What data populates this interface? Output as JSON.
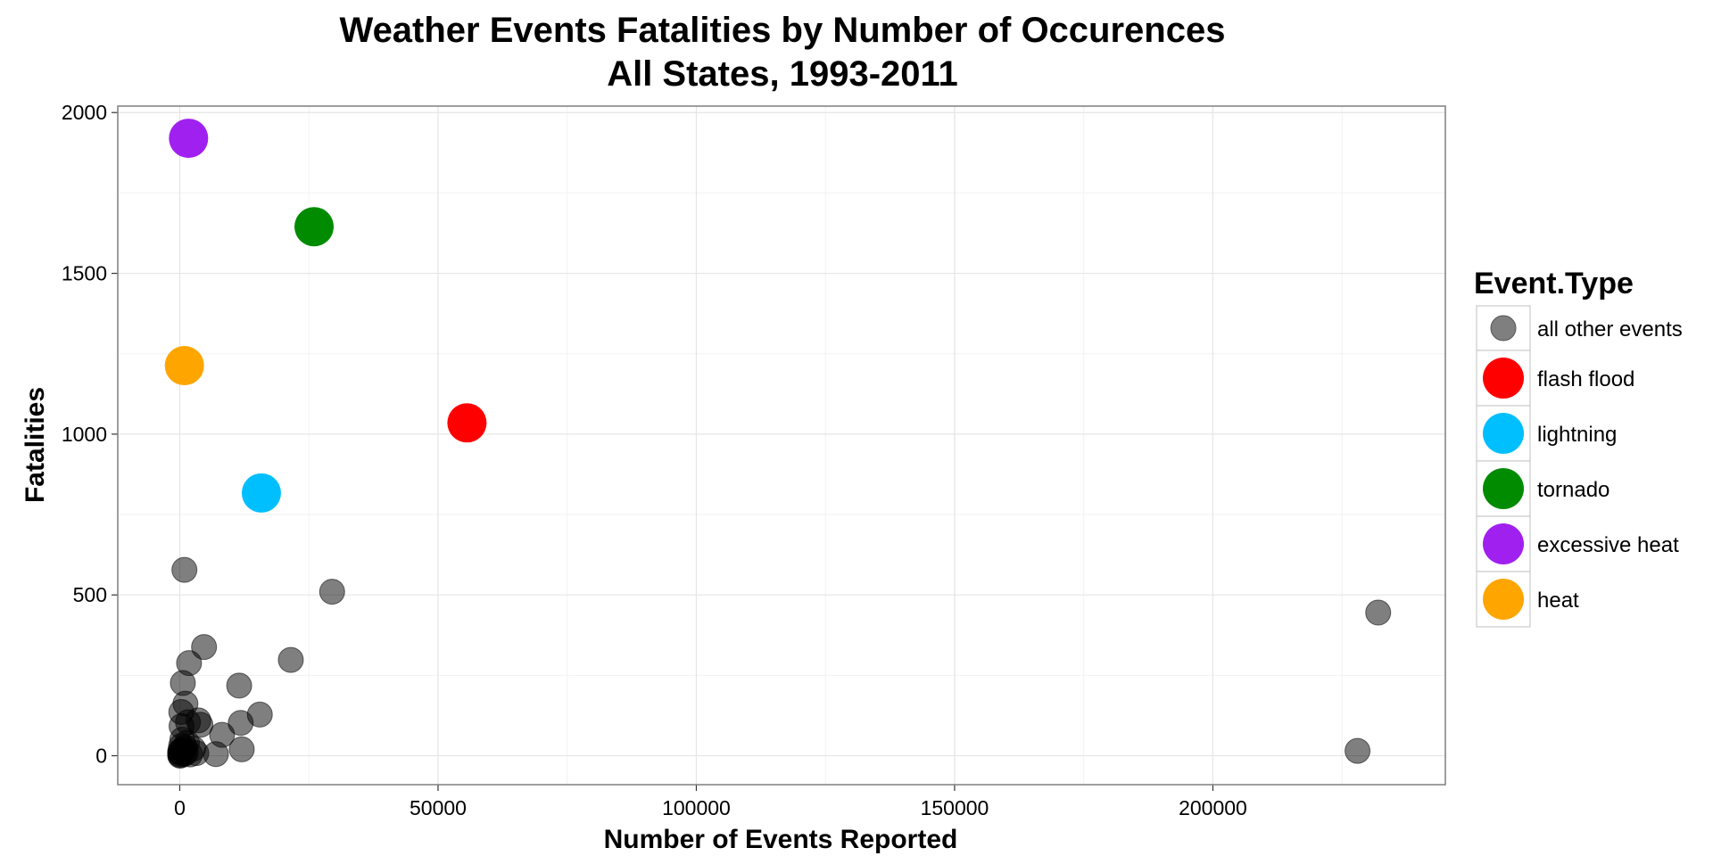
{
  "chart_data": {
    "type": "scatter",
    "title": "Weather Events Fatalities by Number of Occurences",
    "subtitle": "All States, 1993-2011",
    "xlabel": "Number of Events Reported",
    "ylabel": "Fatalities",
    "xlim": [
      -12000,
      245000
    ],
    "ylim": [
      -90,
      2020
    ],
    "x_ticks": [
      0,
      50000,
      100000,
      150000,
      200000
    ],
    "x_tick_labels": [
      "0",
      "50000",
      "100000",
      "150000",
      "200000"
    ],
    "y_ticks": [
      0,
      500,
      1000,
      1500,
      2000
    ],
    "y_tick_labels": [
      "0",
      "500",
      "1000",
      "1500",
      "2000"
    ],
    "grid": true,
    "legend": {
      "title": "Event.Type",
      "position": "right",
      "entries": [
        {
          "name": "all other events",
          "color": "#7f7f7f"
        },
        {
          "name": "flash flood",
          "color": "#ff0000"
        },
        {
          "name": "lightning",
          "color": "#00bfff"
        },
        {
          "name": "tornado",
          "color": "#008b00"
        },
        {
          "name": "excessive heat",
          "color": "#a020f0"
        },
        {
          "name": "heat",
          "color": "#ffa500"
        }
      ]
    },
    "series": [
      {
        "name": "all other events",
        "color": "#000000",
        "opacity": 0.5,
        "points": [
          {
            "x": 232000,
            "y": 445
          },
          {
            "x": 228000,
            "y": 15
          },
          {
            "x": 29500,
            "y": 510
          },
          {
            "x": 21500,
            "y": 298
          },
          {
            "x": 15500,
            "y": 128
          },
          {
            "x": 12000,
            "y": 20
          },
          {
            "x": 11500,
            "y": 218
          },
          {
            "x": 11800,
            "y": 102
          },
          {
            "x": 8200,
            "y": 65
          },
          {
            "x": 7000,
            "y": 5
          },
          {
            "x": 4700,
            "y": 338
          },
          {
            "x": 4000,
            "y": 96
          },
          {
            "x": 3600,
            "y": 110
          },
          {
            "x": 3200,
            "y": 8
          },
          {
            "x": 2600,
            "y": 22
          },
          {
            "x": 1800,
            "y": 288
          },
          {
            "x": 1600,
            "y": 104
          },
          {
            "x": 1400,
            "y": 40
          },
          {
            "x": 900,
            "y": 578
          },
          {
            "x": 1100,
            "y": 162
          },
          {
            "x": 600,
            "y": 226
          },
          {
            "x": 300,
            "y": 136
          },
          {
            "x": 350,
            "y": 92
          },
          {
            "x": 500,
            "y": 50
          },
          {
            "x": 250,
            "y": 30
          },
          {
            "x": 150,
            "y": 15
          },
          {
            "x": 100,
            "y": 5
          },
          {
            "x": 80,
            "y": 0
          },
          {
            "x": 120,
            "y": 2
          },
          {
            "x": 200,
            "y": 8
          },
          {
            "x": 60,
            "y": 12
          },
          {
            "x": 700,
            "y": 18
          },
          {
            "x": 900,
            "y": 6
          },
          {
            "x": 1200,
            "y": 10
          },
          {
            "x": 1000,
            "y": 25
          },
          {
            "x": 2000,
            "y": 4
          }
        ]
      },
      {
        "name": "flash flood",
        "color": "#ff0000",
        "opacity": 1,
        "points": [
          {
            "x": 55600,
            "y": 1035
          }
        ]
      },
      {
        "name": "lightning",
        "color": "#00bfff",
        "opacity": 1,
        "points": [
          {
            "x": 15800,
            "y": 817
          }
        ]
      },
      {
        "name": "tornado",
        "color": "#008b00",
        "opacity": 1,
        "points": [
          {
            "x": 26000,
            "y": 1645
          }
        ]
      },
      {
        "name": "excessive heat",
        "color": "#a020f0",
        "opacity": 1,
        "points": [
          {
            "x": 1700,
            "y": 1920
          }
        ]
      },
      {
        "name": "heat",
        "color": "#ffa500",
        "opacity": 1,
        "points": [
          {
            "x": 900,
            "y": 1213
          }
        ]
      }
    ]
  }
}
